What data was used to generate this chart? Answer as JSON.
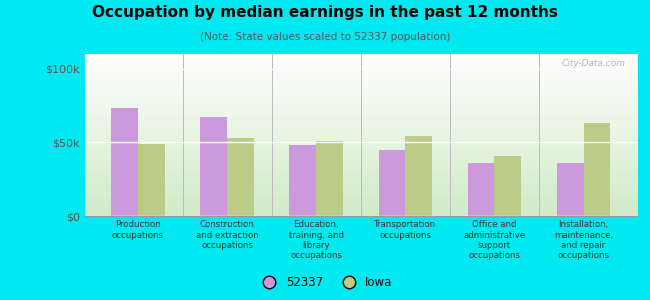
{
  "title": "Occupation by median earnings in the past 12 months",
  "subtitle": "(Note: State values scaled to 52337 population)",
  "categories": [
    "Production\noccupations",
    "Construction\nand extraction\noccupations",
    "Education,\ntraining, and\nlibrary\noccupations",
    "Transportation\noccupations",
    "Office and\nadministrative\nsupport\noccupations",
    "Installation,\nmaintenance,\nand repair\noccupations"
  ],
  "values_52337": [
    73000,
    67000,
    48000,
    45000,
    36000,
    36000
  ],
  "values_iowa": [
    49000,
    53000,
    51000,
    54000,
    41000,
    63000
  ],
  "color_52337": "#cc99dd",
  "color_iowa": "#bbcc88",
  "ylim": [
    0,
    110000
  ],
  "yticks": [
    0,
    50000,
    100000
  ],
  "ytick_labels": [
    "$0",
    "$50k",
    "$100k"
  ],
  "background_color": "#00e8f0",
  "plot_bg_color": "#eef5e8",
  "legend_label_52337": "52337",
  "legend_label_iowa": "Iowa",
  "watermark": "City-Data.com"
}
